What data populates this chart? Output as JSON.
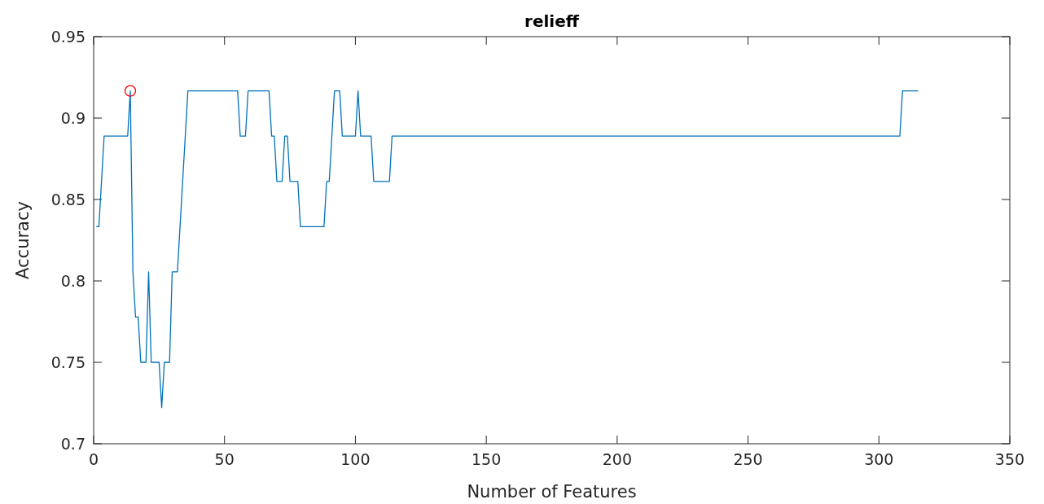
{
  "chart_data": {
    "type": "line",
    "title": "relieff",
    "xlabel": "Number of Features",
    "ylabel": "Accuracy",
    "xlim": [
      0,
      350
    ],
    "xticks": [
      0,
      50,
      100,
      150,
      200,
      250,
      300,
      350
    ],
    "ylim": [
      0.7,
      0.95
    ],
    "yticks": [
      0.7,
      0.75,
      0.8,
      0.85,
      0.9,
      0.95
    ],
    "grid": false,
    "series": [
      {
        "color": "#0072bd",
        "marker": "none",
        "x": [
          1,
          2,
          3,
          4,
          13,
          14,
          15,
          16,
          17,
          18,
          20,
          21,
          22,
          25,
          26,
          27,
          29,
          30,
          32,
          33,
          34,
          35,
          36,
          55,
          56,
          58,
          59,
          67,
          68,
          69,
          70,
          72,
          73,
          74,
          75,
          78,
          79,
          88,
          89,
          90,
          91,
          92,
          94,
          95,
          100,
          101,
          102,
          106,
          107,
          113,
          114,
          308,
          309,
          315
        ],
        "values": [
          0.8333,
          0.8333,
          0.8611,
          0.8889,
          0.8889,
          0.9167,
          0.8056,
          0.7778,
          0.7778,
          0.75,
          0.75,
          0.8056,
          0.75,
          0.75,
          0.7222,
          0.75,
          0.75,
          0.8056,
          0.8056,
          0.8333,
          0.8611,
          0.8889,
          0.9167,
          0.9167,
          0.8889,
          0.8889,
          0.9167,
          0.9167,
          0.8889,
          0.8889,
          0.8611,
          0.8611,
          0.8889,
          0.8889,
          0.8611,
          0.8611,
          0.8333,
          0.8333,
          0.8611,
          0.8611,
          0.8889,
          0.9167,
          0.9167,
          0.8889,
          0.8889,
          0.9167,
          0.8889,
          0.8889,
          0.8611,
          0.8611,
          0.8889,
          0.8889,
          0.9167,
          0.9167
        ]
      },
      {
        "type": "scatter",
        "color": "#ff0000",
        "marker": "circle",
        "x": [
          14
        ],
        "values": [
          0.9167
        ]
      }
    ]
  }
}
